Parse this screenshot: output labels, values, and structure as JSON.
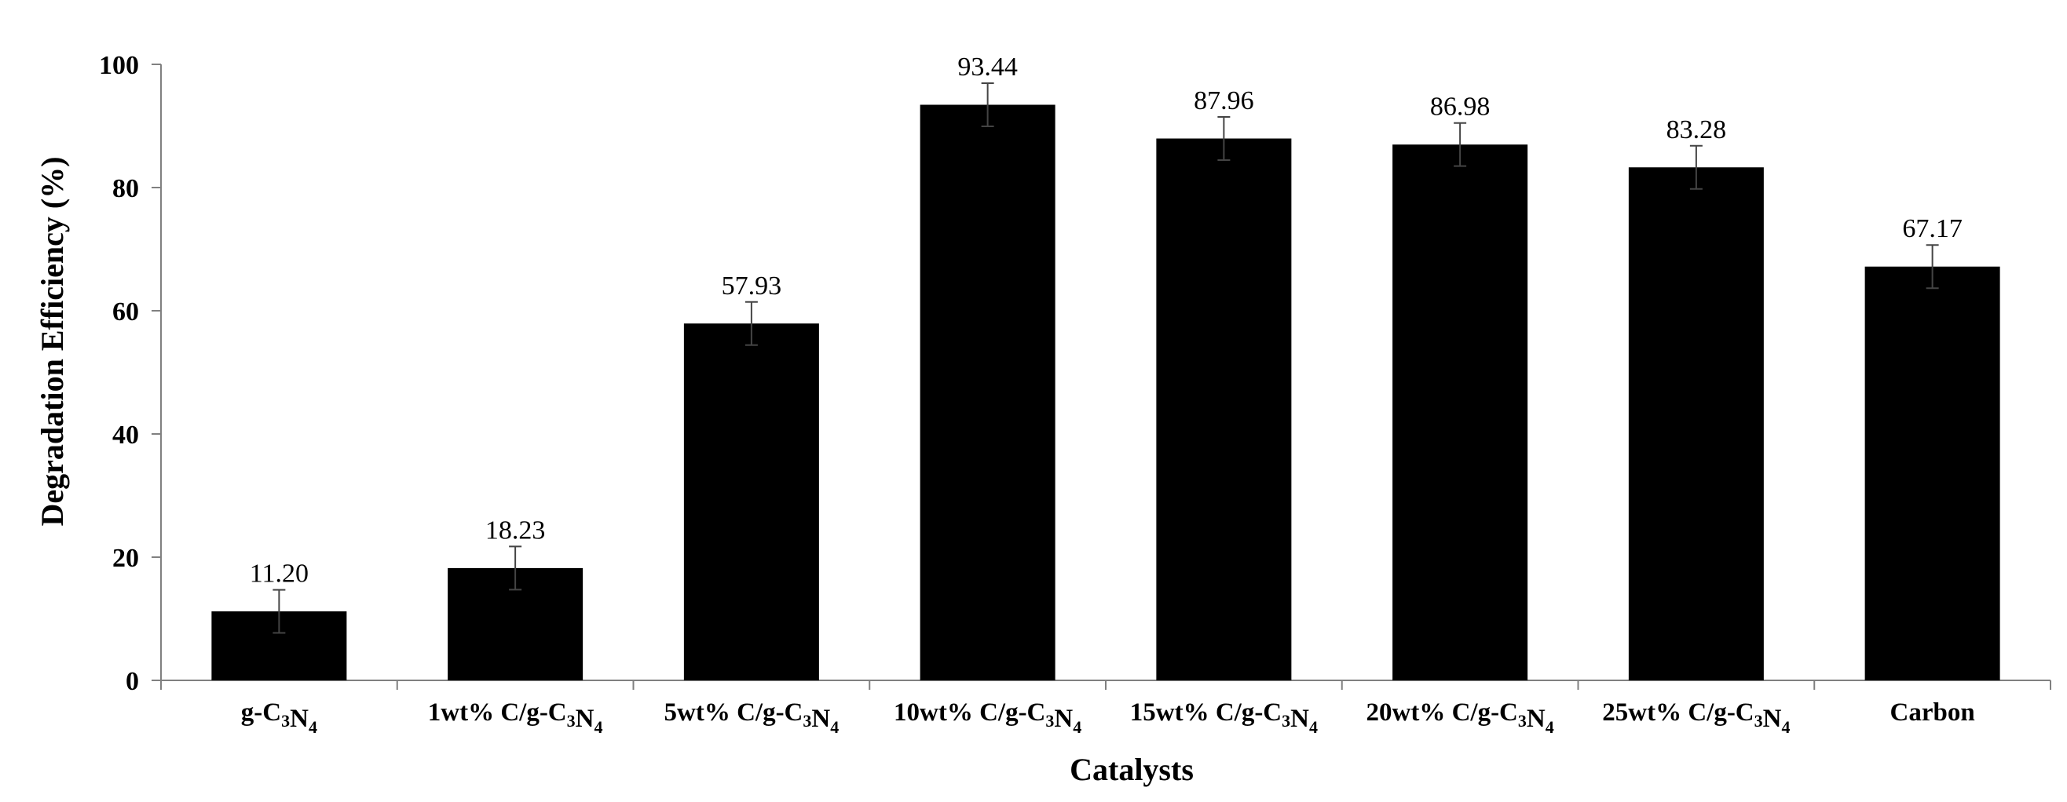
{
  "chart_data": {
    "type": "bar",
    "categories": [
      [
        {
          "t": "g-C"
        },
        {
          "t": "3",
          "sub": true
        },
        {
          "t": "N"
        },
        {
          "t": "4",
          "sub": true
        }
      ],
      [
        {
          "t": "1wt% C/g-C"
        },
        {
          "t": "3",
          "sub": true
        },
        {
          "t": "N"
        },
        {
          "t": "4",
          "sub": true
        }
      ],
      [
        {
          "t": "5wt% C/g-C"
        },
        {
          "t": "3",
          "sub": true
        },
        {
          "t": "N"
        },
        {
          "t": "4",
          "sub": true
        }
      ],
      [
        {
          "t": "10wt% C/g-C"
        },
        {
          "t": "3",
          "sub": true
        },
        {
          "t": "N"
        },
        {
          "t": "4",
          "sub": true
        }
      ],
      [
        {
          "t": "15wt% C/g-C"
        },
        {
          "t": "3",
          "sub": true
        },
        {
          "t": "N"
        },
        {
          "t": "4",
          "sub": true
        }
      ],
      [
        {
          "t": "20wt% C/g-C"
        },
        {
          "t": "3",
          "sub": true
        },
        {
          "t": "N"
        },
        {
          "t": "4",
          "sub": true
        }
      ],
      [
        {
          "t": "25wt% C/g-C"
        },
        {
          "t": "3",
          "sub": true
        },
        {
          "t": "N"
        },
        {
          "t": "4",
          "sub": true
        }
      ],
      [
        {
          "t": "Carbon"
        }
      ]
    ],
    "values": [
      11.2,
      18.23,
      57.93,
      93.44,
      87.96,
      86.98,
      83.28,
      67.17
    ],
    "value_labels": [
      "11.20",
      "18.23",
      "57.93",
      "93.44",
      "87.96",
      "86.98",
      "83.28",
      "67.17"
    ],
    "error": [
      3.5,
      3.5,
      3.5,
      3.5,
      3.5,
      3.5,
      3.5,
      3.5
    ],
    "xlabel": "Catalysts",
    "ylabel": "Degradation Efficiency (%)",
    "ylim": [
      0,
      100
    ],
    "yticks": [
      0,
      20,
      40,
      60,
      80,
      100
    ],
    "bar_color": "#000000",
    "grid": false,
    "legend": "none"
  }
}
